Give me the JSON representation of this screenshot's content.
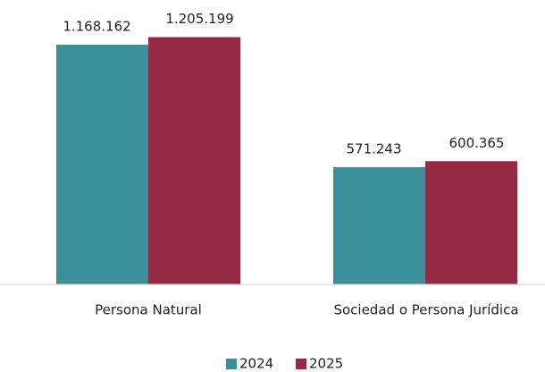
{
  "chart_data": {
    "type": "bar",
    "categories": [
      "Persona Natural",
      "Sociedad o Persona Jurídica"
    ],
    "series": [
      {
        "name": "2024",
        "color": "#3a8f9a",
        "values": [
          1168162,
          571243
        ],
        "value_labels": [
          "1.168.162",
          "571.243"
        ]
      },
      {
        "name": "2025",
        "color": "#952a45",
        "values": [
          1205199,
          600365
        ],
        "value_labels": [
          "1.205.199",
          "600.365"
        ]
      }
    ],
    "legend": "bottom"
  }
}
